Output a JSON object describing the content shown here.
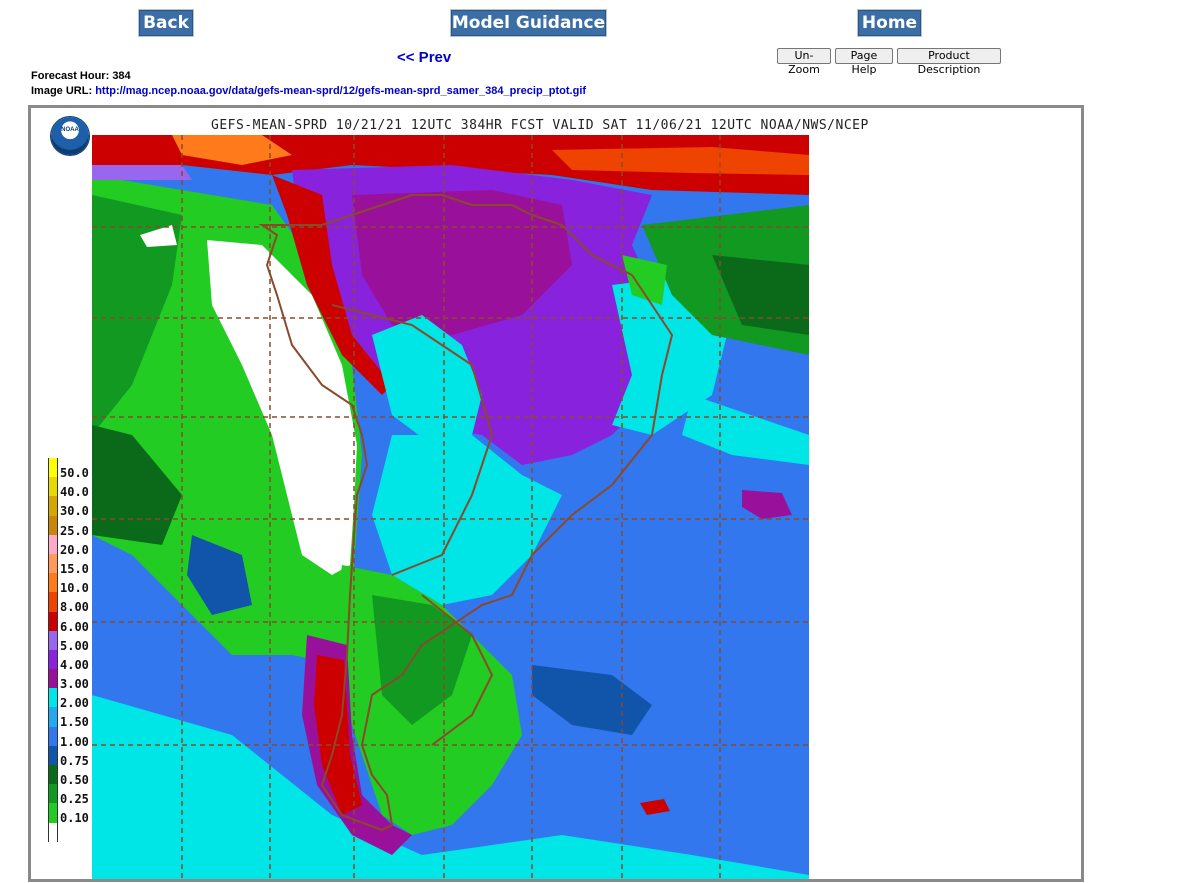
{
  "nav": {
    "back_label": "Back",
    "model_label": "Model Guidance",
    "home_label": "Home",
    "prev_label": "<< Prev"
  },
  "buttons": {
    "unzoom": "Un-Zoom",
    "page_help": "Page Help",
    "product_description": "Product Description"
  },
  "info": {
    "forecast_label": "Forecast Hour:",
    "forecast_hour": "384",
    "url_label": "Image URL:",
    "url": "http://mag.ncep.noaa.gov/data/gefs-mean-sprd/12/gefs-mean-sprd_samer_384_precip_ptot.gif"
  },
  "map": {
    "title": "GEFS-MEAN-SPRD 10/21/21 12UTC 384HR FCST VALID SAT 11/06/21 12UTC NOAA/NWS/NCEP",
    "logo_text": "NOAA"
  },
  "legend": [
    {
      "label": "50.0",
      "color": "#ffff00"
    },
    {
      "label": "40.0",
      "color": "#e8d800"
    },
    {
      "label": "30.0",
      "color": "#d4a800"
    },
    {
      "label": "25.0",
      "color": "#c8860a"
    },
    {
      "label": "20.0",
      "color": "#ffaac8"
    },
    {
      "label": "15.0",
      "color": "#ff9a5a"
    },
    {
      "label": "10.0",
      "color": "#ff7a1a"
    },
    {
      "label": "8.00",
      "color": "#ee4400"
    },
    {
      "label": "6.00",
      "color": "#cc0000"
    },
    {
      "label": "5.00",
      "color": "#9966ee"
    },
    {
      "label": "4.00",
      "color": "#8822dd"
    },
    {
      "label": "3.00",
      "color": "#99119a"
    },
    {
      "label": "2.00",
      "color": "#00e5e5"
    },
    {
      "label": "1.50",
      "color": "#22aaee"
    },
    {
      "label": "1.00",
      "color": "#3377ee"
    },
    {
      "label": "0.75",
      "color": "#1155aa"
    },
    {
      "label": "0.50",
      "color": "#0a6a1a"
    },
    {
      "label": "0.25",
      "color": "#119922"
    },
    {
      "label": "0.10",
      "color": "#22cc22"
    },
    {
      "label": "",
      "color": "#ffffff"
    }
  ]
}
